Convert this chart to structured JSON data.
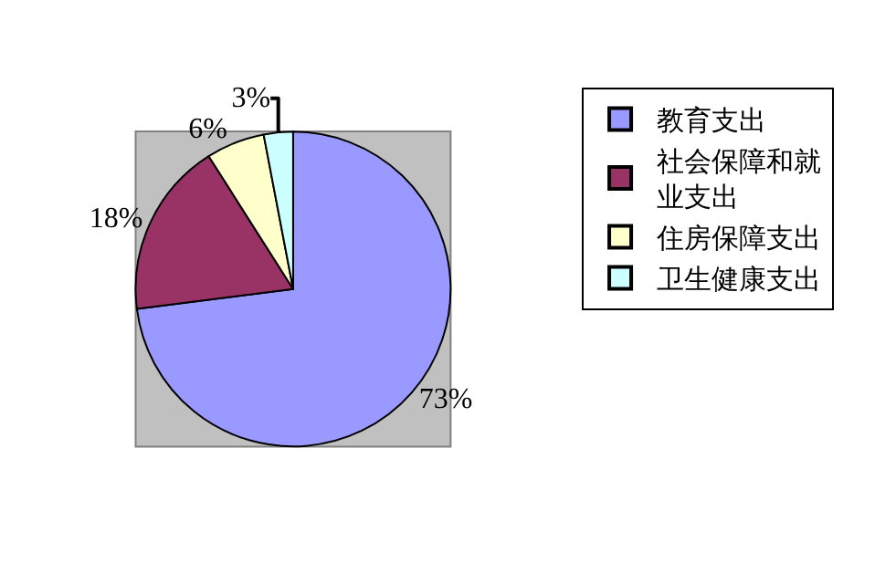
{
  "chart_data": {
    "type": "pie",
    "categories": [
      "教育支出",
      "社会保障和就业支出",
      "住房保障支出",
      "卫生健康支出"
    ],
    "values": [
      73,
      18,
      6,
      3
    ],
    "colors": [
      "#9999ff",
      "#993366",
      "#ffffcc",
      "#ccffff"
    ],
    "value_labels": [
      "73%",
      "18%",
      "6%",
      "3%"
    ],
    "legend": "right"
  }
}
